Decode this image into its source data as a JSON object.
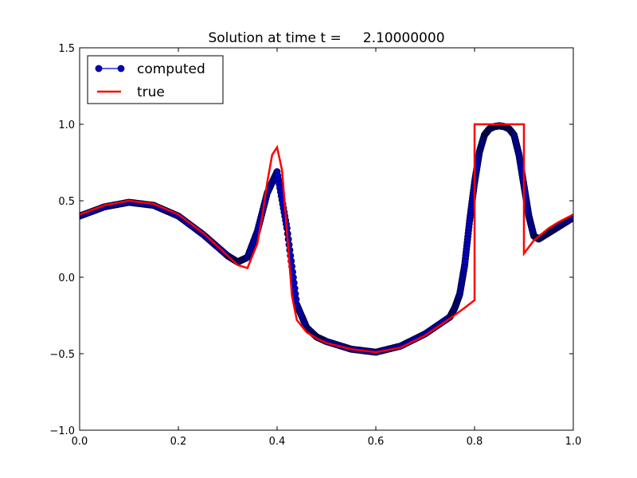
{
  "chart_data": {
    "type": "line",
    "title": "Solution at time t =     2.10000000",
    "xlabel": "",
    "ylabel": "",
    "xlim": [
      0.0,
      1.0
    ],
    "ylim": [
      -1.0,
      1.5
    ],
    "x_ticks": [
      "0.0",
      "0.2",
      "0.4",
      "0.6",
      "0.8",
      "1.0"
    ],
    "y_ticks": [
      "−1.0",
      "−0.5",
      "0.0",
      "0.5",
      "1.0",
      "1.5"
    ],
    "x_tick_values": [
      0.0,
      0.2,
      0.4,
      0.6,
      0.8,
      1.0
    ],
    "y_tick_values": [
      -1.0,
      -0.5,
      0.0,
      0.5,
      1.0,
      1.5
    ],
    "grid": false,
    "legend_position": "top-left",
    "series": [
      {
        "name": "computed",
        "style": "line-with-circle-markers",
        "color": "#0000cc",
        "marker_edge": "#000044",
        "x": [
          0.0,
          0.05,
          0.1,
          0.15,
          0.2,
          0.25,
          0.3,
          0.32,
          0.34,
          0.36,
          0.38,
          0.4,
          0.42,
          0.44,
          0.46,
          0.48,
          0.5,
          0.55,
          0.6,
          0.65,
          0.7,
          0.75,
          0.76,
          0.77,
          0.78,
          0.79,
          0.8,
          0.81,
          0.82,
          0.83,
          0.84,
          0.85,
          0.86,
          0.87,
          0.88,
          0.89,
          0.9,
          0.91,
          0.92,
          0.93,
          0.95,
          0.97,
          1.0
        ],
        "values": [
          0.4,
          0.46,
          0.49,
          0.47,
          0.4,
          0.28,
          0.14,
          0.1,
          0.13,
          0.3,
          0.55,
          0.69,
          0.32,
          -0.18,
          -0.33,
          -0.39,
          -0.42,
          -0.47,
          -0.49,
          -0.45,
          -0.37,
          -0.26,
          -0.2,
          -0.11,
          0.08,
          0.37,
          0.62,
          0.82,
          0.93,
          0.97,
          0.985,
          0.99,
          0.985,
          0.97,
          0.93,
          0.8,
          0.6,
          0.4,
          0.27,
          0.25,
          0.29,
          0.33,
          0.39
        ]
      },
      {
        "name": "true",
        "style": "line",
        "color": "#ff0000",
        "x": [
          0.0,
          0.05,
          0.1,
          0.15,
          0.2,
          0.25,
          0.3,
          0.32,
          0.34,
          0.36,
          0.37,
          0.38,
          0.39,
          0.4,
          0.41,
          0.42,
          0.43,
          0.44,
          0.46,
          0.48,
          0.5,
          0.55,
          0.6,
          0.65,
          0.7,
          0.75,
          0.78,
          0.8,
          0.8,
          0.9,
          0.9,
          0.92,
          0.95,
          0.97,
          1.0
        ],
        "values": [
          0.41,
          0.47,
          0.5,
          0.48,
          0.41,
          0.29,
          0.14,
          0.08,
          0.06,
          0.22,
          0.4,
          0.62,
          0.8,
          0.85,
          0.7,
          0.3,
          -0.12,
          -0.28,
          -0.36,
          -0.4,
          -0.43,
          -0.47,
          -0.49,
          -0.46,
          -0.38,
          -0.27,
          -0.2,
          -0.15,
          1.0,
          1.0,
          0.155,
          0.24,
          0.32,
          0.36,
          0.41
        ]
      }
    ]
  }
}
